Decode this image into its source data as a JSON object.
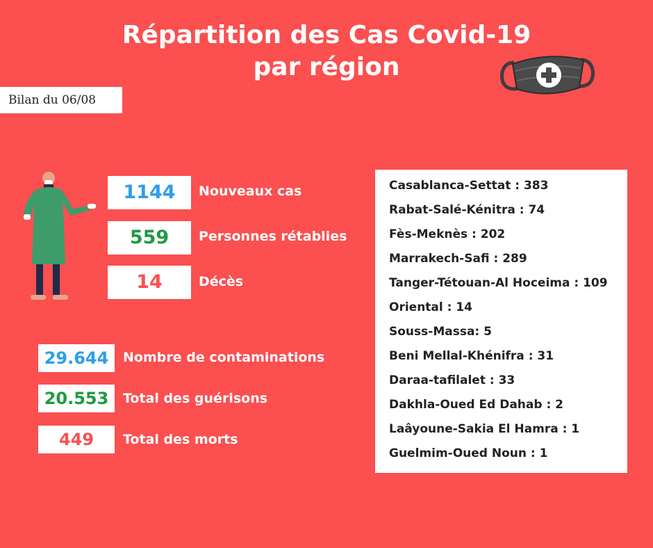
{
  "title": {
    "line1": "Répartition des Cas Covid-19",
    "line2": "par région"
  },
  "bilan": "Bilan du 06/08",
  "daily": [
    {
      "value": "1144",
      "label": "Nouveaux cas",
      "color": "#2f9ee8"
    },
    {
      "value": "559",
      "label": "Personnes rétablies",
      "color": "#1e9a43"
    },
    {
      "value": "14",
      "label": "Décès",
      "color": "#fb4f50"
    }
  ],
  "totals": [
    {
      "value": "29.644",
      "label": "Nombre de contaminations",
      "color": "#2f9ee8"
    },
    {
      "value": "20.553",
      "label": "Total des guérisons",
      "color": "#1e9a43"
    },
    {
      "value": "449",
      "label": "Total des morts",
      "color": "#fb4f50"
    }
  ],
  "regions": [
    "Casablanca-Settat : 383",
    "Rabat-Salé-Kénitra : 74",
    "Fès-Meknès : 202",
    "Marrakech-Safi : 289",
    "Tanger-Tétouan-Al Hoceima : 109",
    "Oriental : 14",
    "Souss-Massa: 5",
    "Beni Mellal-Khénifra : 31",
    "Daraa-tafilalet : 33",
    "Dakhla-Oued Ed Dahab : 2",
    "Laâyoune-Sakia El Hamra : 1",
    "Guelmim-Oued Noun : 1"
  ],
  "icons": {
    "mask": "medical-mask-icon",
    "person": "doctor-illustration"
  },
  "colors": {
    "background": "#fb4f50",
    "panel": "#ffffff"
  }
}
